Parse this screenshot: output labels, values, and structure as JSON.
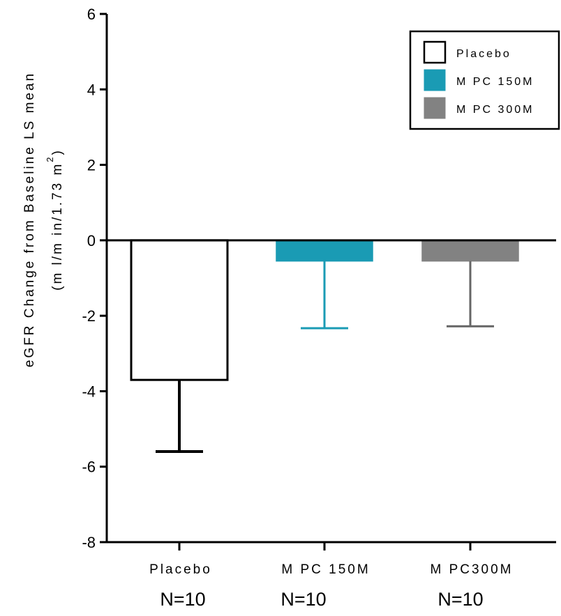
{
  "chart_data": {
    "type": "bar",
    "title": "",
    "ylabel": "eGFR Change from Baseline LS mean",
    "ylabel_units": "(m l/m in/1.73 m",
    "ylabel_units_sup": "2",
    "ylabel_units_close": ")",
    "ylim": [
      -8,
      6
    ],
    "yticks": [
      "6",
      "4",
      "2",
      "0",
      "-2",
      "-4",
      "-6",
      "-8"
    ],
    "ytick_values": [
      6,
      4,
      2,
      0,
      -2,
      -4,
      -6,
      -8
    ],
    "categories": [
      "Placebo",
      "M PC 150M",
      "M PC300M"
    ],
    "values": [
      -3.7,
      -0.55,
      -0.55
    ],
    "error_lower": [
      -5.6,
      -2.33,
      -2.28
    ],
    "n_labels": [
      "N=10",
      "N=10",
      "N=10"
    ],
    "grid": false,
    "legend_position": "top-right",
    "legend": [
      {
        "label": "Placebo",
        "fill": "#ffffff",
        "stroke": "#000000"
      },
      {
        "label": "M PC 150M",
        "fill": "#1a9bb4",
        "stroke": "#1a9bb4"
      },
      {
        "label": "M PC 300M",
        "fill": "#828282",
        "stroke": "#828282"
      }
    ],
    "bar_colors": [
      "#ffffff",
      "#1a9bb4",
      "#828282"
    ],
    "bar_strokes": [
      "#000000",
      "#1a9bb4",
      "#828282"
    ],
    "error_colors": [
      "#000000",
      "#1a9bb4",
      "#666666"
    ]
  }
}
